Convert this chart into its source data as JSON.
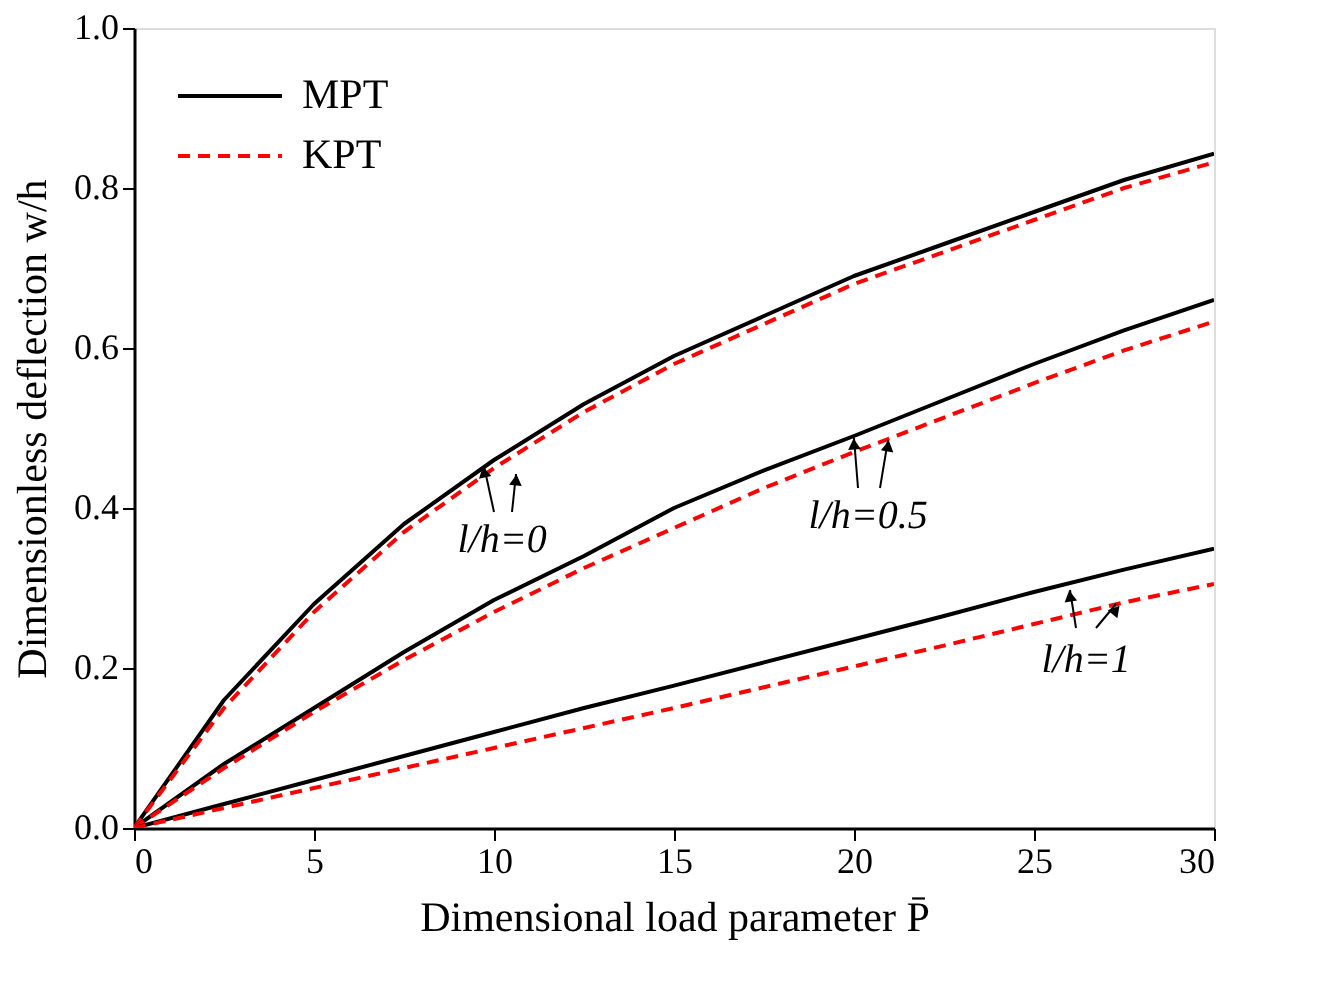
{
  "chart_data": {
    "type": "line",
    "xlabel": "Dimensional load parameter P̄",
    "ylabel": "Dimensionless deflection w/h",
    "x": [
      0,
      2.5,
      5,
      7.5,
      10,
      12.5,
      15,
      17.5,
      20,
      22.5,
      25,
      27.5,
      30
    ],
    "series": [
      {
        "name": "MPT",
        "color": "#000000",
        "line_style": "solid",
        "values": [
          0,
          0.16,
          0.28,
          0.38,
          0.46,
          0.53,
          0.59,
          0.64,
          0.69,
          0.73,
          0.77,
          0.81,
          0.843
        ]
      },
      {
        "name": "KPT",
        "color": "#ff0000",
        "line_style": "dashed",
        "values": [
          0,
          0.15,
          0.27,
          0.37,
          0.45,
          0.52,
          0.58,
          0.63,
          0.68,
          0.72,
          0.76,
          0.8,
          0.832
        ]
      },
      {
        "color": "#000000",
        "line_style": "solid",
        "values": [
          0,
          0.08,
          0.15,
          0.22,
          0.285,
          0.34,
          0.4,
          0.447,
          0.49,
          0.535,
          0.58,
          0.622,
          0.66
        ]
      },
      {
        "color": "#ff0000",
        "line_style": "dashed",
        "values": [
          0,
          0.075,
          0.145,
          0.21,
          0.27,
          0.325,
          0.375,
          0.425,
          0.47,
          0.513,
          0.556,
          0.597,
          0.633
        ]
      },
      {
        "color": "#000000",
        "line_style": "solid",
        "values": [
          0,
          0.03,
          0.06,
          0.09,
          0.12,
          0.15,
          0.178,
          0.207,
          0.236,
          0.265,
          0.295,
          0.323,
          0.349
        ]
      },
      {
        "color": "#ff0000",
        "line_style": "dashed",
        "values": [
          0,
          0.025,
          0.05,
          0.075,
          0.1,
          0.125,
          0.15,
          0.176,
          0.202,
          0.228,
          0.255,
          0.282,
          0.305
        ]
      }
    ],
    "xlim": [
      0,
      30
    ],
    "xticks": [
      0,
      5,
      10,
      15,
      20,
      25,
      30
    ],
    "ylim": [
      0,
      1.0
    ],
    "yticks": [
      {
        "value": 0,
        "label": "0.0"
      },
      {
        "value": 0.2,
        "label": "0.2"
      },
      {
        "value": 0.4,
        "label": "0.4"
      },
      {
        "value": 0.6,
        "label": "0.6"
      },
      {
        "value": 0.8,
        "label": "0.8"
      },
      {
        "value": 1.0,
        "label": "1.0"
      }
    ],
    "annotations": [
      "l/h=0",
      "l/h=0.5",
      "l/h=1"
    ],
    "grid": false,
    "legend": "top left"
  }
}
